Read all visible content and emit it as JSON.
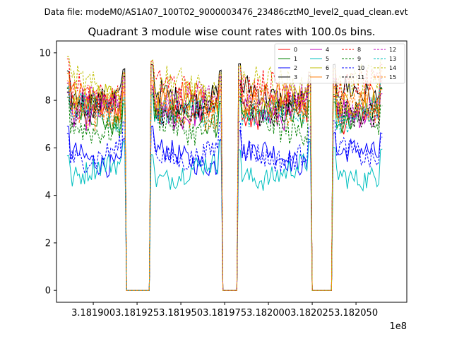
{
  "figure": {
    "suptitle": "Data file: modeM0/AS1A07_100T02_9000003476_23486cztM0_level2_quad_clean.evt",
    "offset_label": "1e8"
  },
  "chart_data": {
    "type": "line",
    "title": "Quadrant 3 module wise count rates with 100.0s bins.",
    "xlabel": "",
    "ylabel": "",
    "xlim": [
      318187900,
      318207900
    ],
    "ylim": [
      -0.5,
      10.5
    ],
    "grid": false,
    "legend_position": "top-right",
    "legend_columns": 4,
    "x_tick_values": [
      318190000,
      318192500,
      318195000,
      318197500,
      318200000,
      318202500,
      318205000
    ],
    "x_tick_labels": [
      "3.181900",
      "3.181925",
      "3.181950",
      "3.181975",
      "3.182000",
      "3.182025",
      "3.182050"
    ],
    "y_tick_values": [
      0,
      2,
      4,
      6,
      8,
      10
    ],
    "y_tick_labels": [
      "0",
      "2",
      "4",
      "6",
      "8",
      "10"
    ],
    "x_offset_text": "1e8",
    "segments": [
      {
        "start": 318188500,
        "end": 318191800
      },
      {
        "start": 318193300,
        "end": 318197300
      },
      {
        "start": 318198300,
        "end": 318202400
      },
      {
        "start": 318203700,
        "end": 318206500
      }
    ],
    "series": [
      {
        "name": "0",
        "color": "#ff0000",
        "style": "solid",
        "level": 7.5,
        "noise": 0.6
      },
      {
        "name": "1",
        "color": "#008000",
        "style": "solid",
        "level": 7.2,
        "noise": 0.5
      },
      {
        "name": "2",
        "color": "#0000ff",
        "style": "solid",
        "level": 5.6,
        "noise": 0.5
      },
      {
        "name": "3",
        "color": "#000000",
        "style": "solid",
        "level": 8.2,
        "noise": 0.6
      },
      {
        "name": "4",
        "color": "#bf00bf",
        "style": "solid",
        "level": 7.6,
        "noise": 0.6
      },
      {
        "name": "5",
        "color": "#00bfbf",
        "style": "solid",
        "level": 5.0,
        "noise": 0.5
      },
      {
        "name": "6",
        "color": "#bfbf00",
        "style": "solid",
        "level": 7.8,
        "noise": 0.6
      },
      {
        "name": "7",
        "color": "#ff7f0e",
        "style": "solid",
        "level": 7.9,
        "noise": 0.6
      },
      {
        "name": "8",
        "color": "#ff0000",
        "style": "dashed",
        "level": 8.4,
        "noise": 0.6
      },
      {
        "name": "9",
        "color": "#008000",
        "style": "dashed",
        "level": 7.0,
        "noise": 0.6
      },
      {
        "name": "10",
        "color": "#0000ff",
        "style": "dashed",
        "level": 5.8,
        "noise": 0.5
      },
      {
        "name": "11",
        "color": "#000000",
        "style": "dashed",
        "level": 7.7,
        "noise": 0.6
      },
      {
        "name": "12",
        "color": "#bf00bf",
        "style": "dashed",
        "level": 7.9,
        "noise": 0.6
      },
      {
        "name": "13",
        "color": "#00bfbf",
        "style": "dashed",
        "level": 7.4,
        "noise": 0.6
      },
      {
        "name": "14",
        "color": "#bfbf00",
        "style": "dashed",
        "level": 8.5,
        "noise": 0.7
      },
      {
        "name": "15",
        "color": "#ff7f0e",
        "style": "dashed",
        "level": 7.6,
        "noise": 0.6
      }
    ]
  }
}
